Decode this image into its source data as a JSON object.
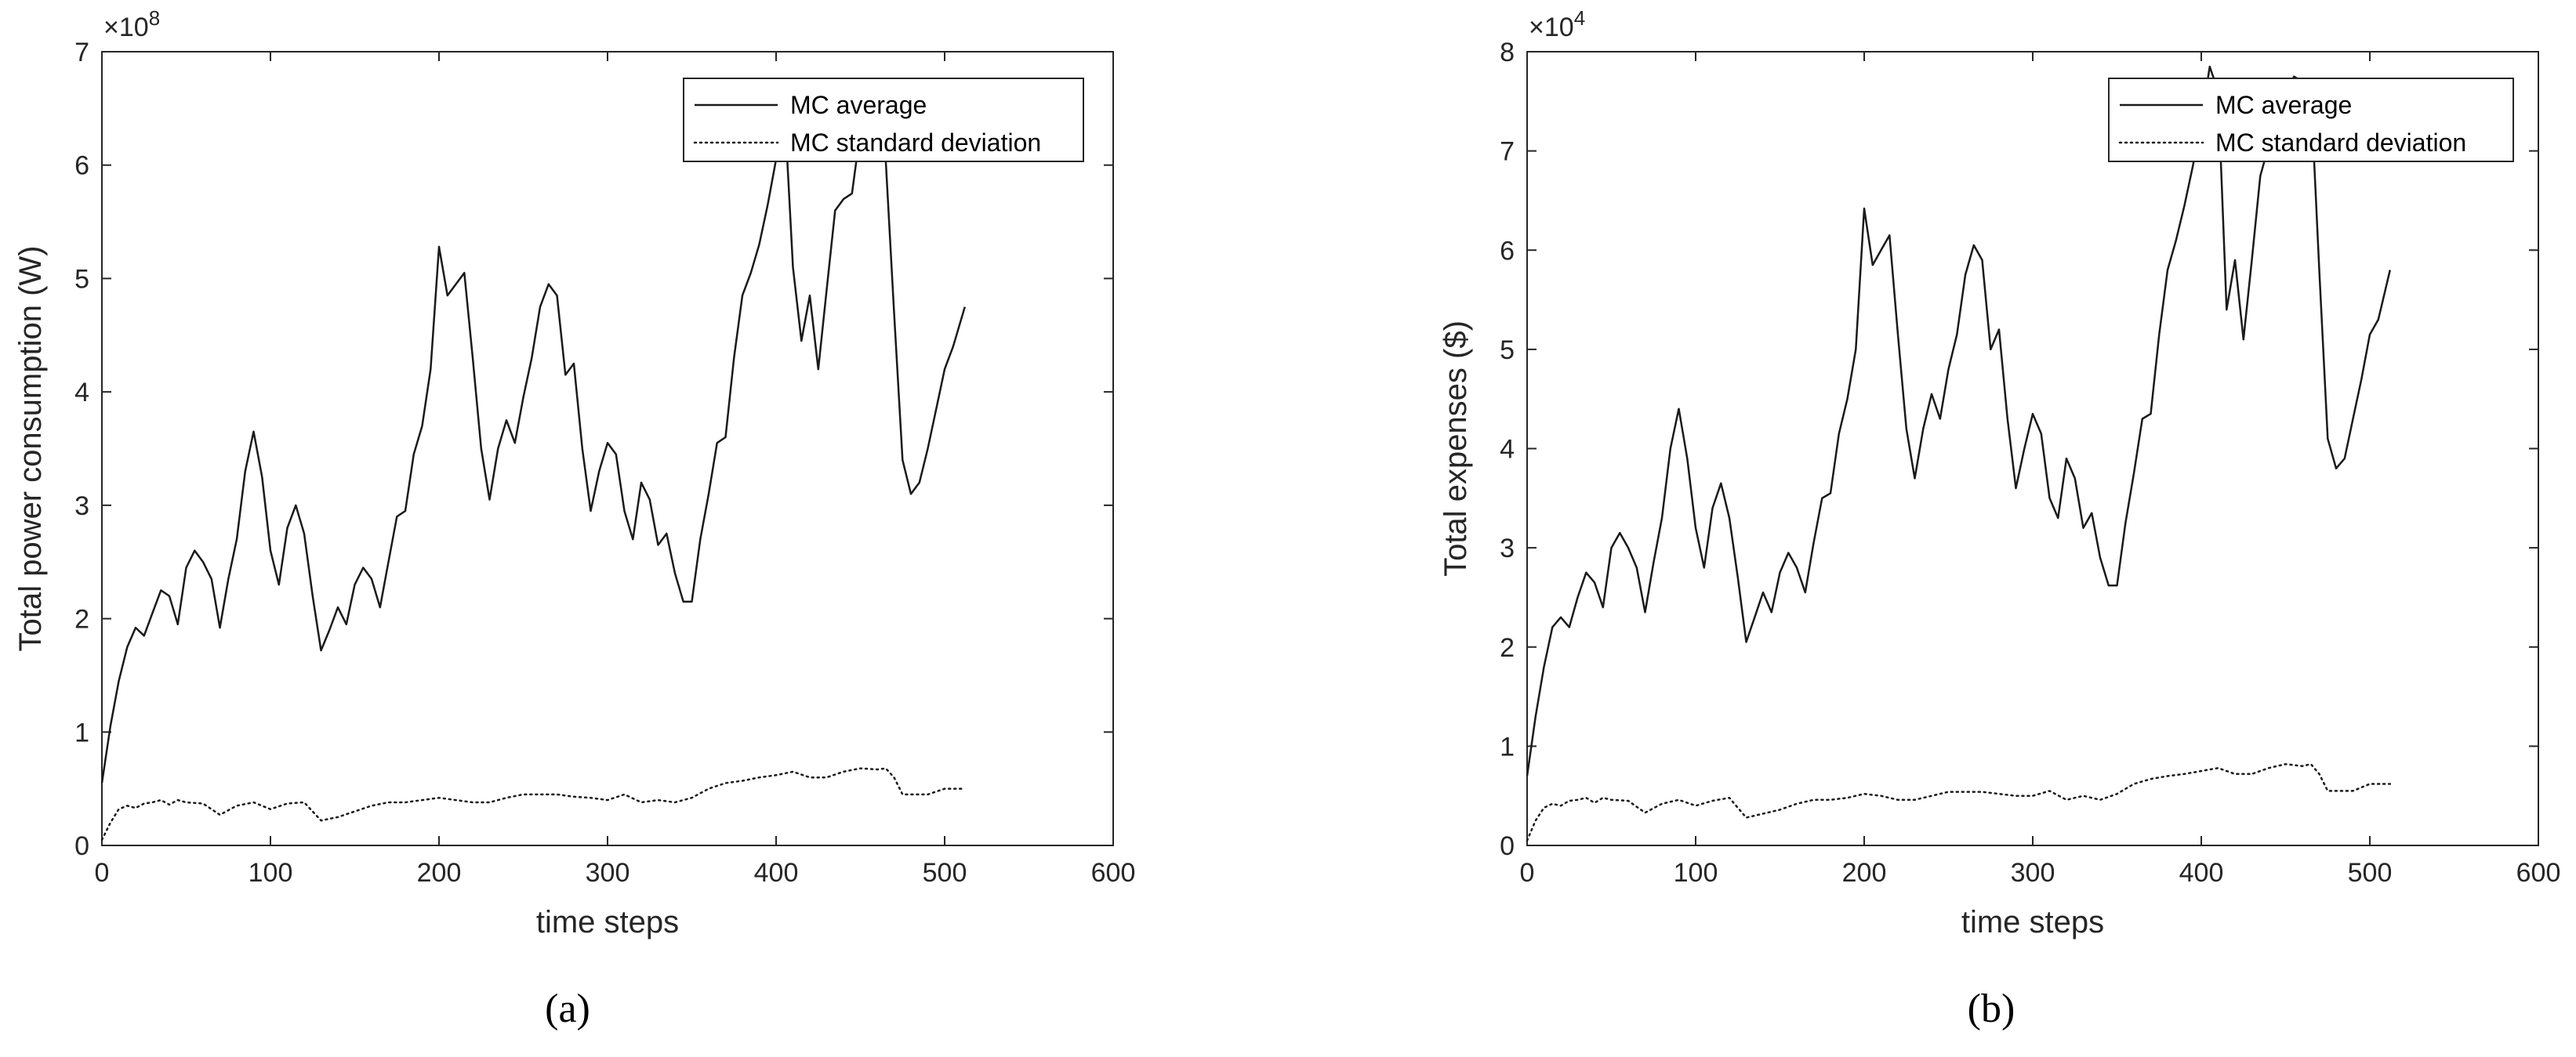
{
  "chart_data": [
    {
      "type": "line",
      "caption": "(a)",
      "xlabel": "time steps",
      "ylabel": "Total power consumption (W)",
      "y_multiplier": "×10",
      "y_multiplier_exp": "8",
      "xlim": [
        0,
        600
      ],
      "ylim": [
        0,
        7
      ],
      "xticks": [
        0,
        100,
        200,
        300,
        400,
        500,
        600
      ],
      "yticks": [
        0,
        1,
        2,
        3,
        4,
        5,
        6,
        7
      ],
      "grid": false,
      "legend_position": "top-right",
      "series": [
        {
          "name": "MC average",
          "style": "solid",
          "x": [
            0,
            5,
            10,
            15,
            20,
            25,
            30,
            35,
            40,
            45,
            50,
            55,
            60,
            65,
            70,
            75,
            80,
            85,
            90,
            95,
            100,
            105,
            110,
            115,
            120,
            125,
            130,
            135,
            140,
            145,
            150,
            155,
            160,
            165,
            170,
            175,
            180,
            185,
            190,
            195,
            200,
            205,
            210,
            215,
            220,
            225,
            230,
            235,
            240,
            245,
            250,
            255,
            260,
            265,
            270,
            275,
            280,
            285,
            290,
            295,
            300,
            305,
            310,
            315,
            320,
            325,
            330,
            335,
            340,
            345,
            350,
            355,
            360,
            365,
            370,
            375,
            380,
            385,
            390,
            395,
            400,
            405,
            410,
            415,
            420,
            425,
            430,
            435,
            440,
            445,
            450,
            455,
            460,
            465,
            470,
            475,
            480,
            485,
            490,
            495,
            500,
            505,
            512
          ],
          "values": [
            0.55,
            1.05,
            1.45,
            1.75,
            1.92,
            1.85,
            2.05,
            2.25,
            2.2,
            1.95,
            2.45,
            2.6,
            2.5,
            2.35,
            1.92,
            2.35,
            2.7,
            3.3,
            3.65,
            3.25,
            2.6,
            2.3,
            2.8,
            3.0,
            2.75,
            2.2,
            1.72,
            1.9,
            2.1,
            1.95,
            2.3,
            2.45,
            2.35,
            2.1,
            2.5,
            2.9,
            2.95,
            3.45,
            3.7,
            4.2,
            5.28,
            4.85,
            4.95,
            5.05,
            4.3,
            3.5,
            3.05,
            3.5,
            3.75,
            3.55,
            3.95,
            4.3,
            4.75,
            4.95,
            4.85,
            4.15,
            4.25,
            3.5,
            2.95,
            3.3,
            3.55,
            3.45,
            2.95,
            2.7,
            3.2,
            3.05,
            2.65,
            2.75,
            2.4,
            2.15,
            2.15,
            2.7,
            3.1,
            3.55,
            3.6,
            4.3,
            4.85,
            5.05,
            5.3,
            5.65,
            6.05,
            6.5,
            5.1,
            4.45,
            4.85,
            4.2,
            4.9,
            5.6,
            5.7,
            5.75,
            6.3,
            6.6,
            6.6,
            6.05,
            4.7,
            3.4,
            3.1,
            3.2,
            3.5,
            3.85,
            4.2,
            4.4,
            4.75
          ]
        },
        {
          "name": "MC standard deviation",
          "style": "dotted",
          "x": [
            0,
            5,
            10,
            15,
            20,
            25,
            30,
            35,
            40,
            45,
            50,
            60,
            70,
            80,
            90,
            100,
            110,
            120,
            130,
            140,
            150,
            160,
            170,
            180,
            190,
            200,
            210,
            220,
            230,
            240,
            250,
            260,
            270,
            280,
            290,
            300,
            310,
            320,
            330,
            340,
            350,
            360,
            370,
            380,
            390,
            400,
            410,
            420,
            430,
            440,
            450,
            460,
            465,
            470,
            475,
            480,
            490,
            500,
            512
          ],
          "values": [
            0.05,
            0.2,
            0.32,
            0.35,
            0.33,
            0.37,
            0.38,
            0.4,
            0.36,
            0.4,
            0.38,
            0.37,
            0.27,
            0.35,
            0.38,
            0.32,
            0.37,
            0.38,
            0.22,
            0.25,
            0.3,
            0.35,
            0.38,
            0.38,
            0.4,
            0.42,
            0.4,
            0.38,
            0.38,
            0.42,
            0.45,
            0.45,
            0.45,
            0.43,
            0.42,
            0.4,
            0.45,
            0.38,
            0.4,
            0.38,
            0.42,
            0.5,
            0.55,
            0.57,
            0.6,
            0.62,
            0.65,
            0.6,
            0.6,
            0.65,
            0.68,
            0.67,
            0.68,
            0.6,
            0.45,
            0.45,
            0.45,
            0.5,
            0.5
          ]
        }
      ]
    },
    {
      "type": "line",
      "caption": "(b)",
      "xlabel": "time steps",
      "ylabel": "Total expenses ($)",
      "y_multiplier": "×10",
      "y_multiplier_exp": "4",
      "xlim": [
        0,
        600
      ],
      "ylim": [
        0,
        8
      ],
      "xticks": [
        0,
        100,
        200,
        300,
        400,
        500,
        600
      ],
      "yticks": [
        0,
        1,
        2,
        3,
        4,
        5,
        6,
        7,
        8
      ],
      "grid": false,
      "legend_position": "top-right",
      "series": [
        {
          "name": "MC average",
          "style": "solid",
          "x": [
            0,
            5,
            10,
            15,
            20,
            25,
            30,
            35,
            40,
            45,
            50,
            55,
            60,
            65,
            70,
            75,
            80,
            85,
            90,
            95,
            100,
            105,
            110,
            115,
            120,
            125,
            130,
            135,
            140,
            145,
            150,
            155,
            160,
            165,
            170,
            175,
            180,
            185,
            190,
            195,
            200,
            205,
            210,
            215,
            220,
            225,
            230,
            235,
            240,
            245,
            250,
            255,
            260,
            265,
            270,
            275,
            280,
            285,
            290,
            295,
            300,
            305,
            310,
            315,
            320,
            325,
            330,
            335,
            340,
            345,
            350,
            355,
            360,
            365,
            370,
            375,
            380,
            385,
            390,
            395,
            400,
            405,
            410,
            415,
            420,
            425,
            430,
            435,
            440,
            445,
            450,
            455,
            460,
            465,
            470,
            475,
            480,
            485,
            490,
            495,
            500,
            505,
            512
          ],
          "values": [
            0.7,
            1.3,
            1.8,
            2.2,
            2.3,
            2.2,
            2.5,
            2.75,
            2.65,
            2.4,
            3.0,
            3.15,
            3.0,
            2.8,
            2.35,
            2.85,
            3.3,
            4.0,
            4.4,
            3.9,
            3.2,
            2.8,
            3.4,
            3.65,
            3.3,
            2.7,
            2.05,
            2.3,
            2.55,
            2.35,
            2.75,
            2.95,
            2.8,
            2.55,
            3.05,
            3.5,
            3.55,
            4.15,
            4.5,
            5.0,
            6.42,
            5.85,
            6.0,
            6.15,
            5.15,
            4.2,
            3.7,
            4.2,
            4.55,
            4.3,
            4.8,
            5.15,
            5.75,
            6.05,
            5.9,
            5.0,
            5.2,
            4.3,
            3.6,
            4.0,
            4.35,
            4.15,
            3.5,
            3.3,
            3.9,
            3.7,
            3.2,
            3.35,
            2.9,
            2.62,
            2.62,
            3.25,
            3.75,
            4.3,
            4.35,
            5.15,
            5.8,
            6.1,
            6.45,
            6.85,
            7.3,
            7.85,
            7.6,
            5.4,
            5.9,
            5.1,
            5.9,
            6.75,
            7.05,
            7.1,
            7.6,
            7.75,
            7.7,
            7.6,
            5.8,
            4.1,
            3.8,
            3.9,
            4.3,
            4.7,
            5.15,
            5.3,
            5.8
          ]
        },
        {
          "name": "MC standard deviation",
          "style": "dotted",
          "x": [
            0,
            5,
            10,
            15,
            20,
            25,
            30,
            35,
            40,
            45,
            50,
            60,
            70,
            80,
            90,
            100,
            110,
            120,
            130,
            140,
            150,
            160,
            170,
            180,
            190,
            200,
            210,
            220,
            230,
            240,
            250,
            260,
            270,
            280,
            290,
            300,
            310,
            320,
            330,
            340,
            350,
            360,
            370,
            380,
            390,
            400,
            410,
            420,
            430,
            440,
            450,
            460,
            465,
            470,
            475,
            480,
            490,
            500,
            512
          ],
          "values": [
            0.05,
            0.25,
            0.38,
            0.42,
            0.4,
            0.45,
            0.46,
            0.48,
            0.43,
            0.48,
            0.46,
            0.45,
            0.33,
            0.42,
            0.46,
            0.4,
            0.45,
            0.48,
            0.28,
            0.32,
            0.36,
            0.42,
            0.46,
            0.46,
            0.48,
            0.52,
            0.5,
            0.46,
            0.46,
            0.5,
            0.54,
            0.54,
            0.54,
            0.52,
            0.5,
            0.5,
            0.55,
            0.46,
            0.5,
            0.46,
            0.52,
            0.62,
            0.67,
            0.7,
            0.72,
            0.75,
            0.78,
            0.72,
            0.72,
            0.78,
            0.82,
            0.8,
            0.82,
            0.72,
            0.55,
            0.55,
            0.55,
            0.62,
            0.62
          ]
        }
      ]
    }
  ]
}
